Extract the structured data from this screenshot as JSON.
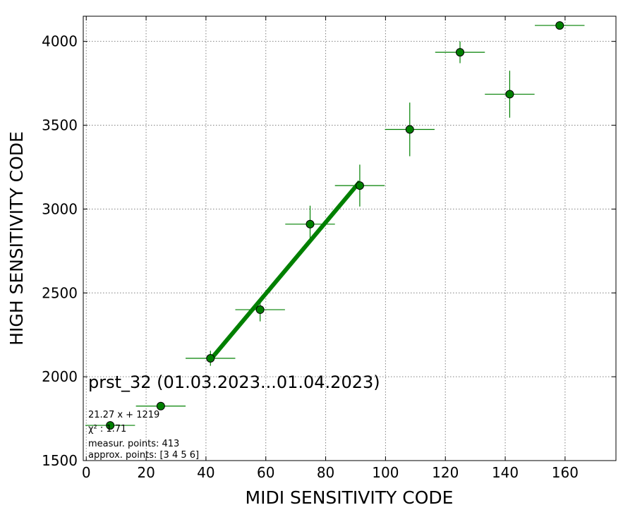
{
  "chart_data": {
    "type": "scatter",
    "xlabel": "MIDI SENSITIVITY CODE",
    "ylabel": "HIGH SENSITIVITY CODE",
    "xlim": [
      -1,
      177
    ],
    "ylim": [
      1500,
      4150
    ],
    "x_ticks": [
      0,
      20,
      40,
      60,
      80,
      100,
      120,
      140,
      160
    ],
    "y_ticks": [
      1500,
      2000,
      2500,
      3000,
      3500,
      4000
    ],
    "grid": true,
    "colors": {
      "series": "#008000",
      "marker_edge": "#000000",
      "grid": "#808080"
    },
    "points": [
      {
        "x": 8.0,
        "y": 1710,
        "xerr": 8.3,
        "yerr": 0
      },
      {
        "x": 24.9,
        "y": 1825,
        "xerr": 8.3,
        "yerr": 0
      },
      {
        "x": 41.5,
        "y": 2110,
        "xerr": 8.3,
        "yerr": 45
      },
      {
        "x": 58.1,
        "y": 2400,
        "xerr": 8.3,
        "yerr": 70
      },
      {
        "x": 74.8,
        "y": 2910,
        "xerr": 8.3,
        "yerr": 110
      },
      {
        "x": 91.4,
        "y": 3140,
        "xerr": 8.3,
        "yerr": 125
      },
      {
        "x": 108.1,
        "y": 3475,
        "xerr": 8.3,
        "yerr": 160
      },
      {
        "x": 124.9,
        "y": 3935,
        "xerr": 8.3,
        "yerr": 65
      },
      {
        "x": 141.5,
        "y": 3685,
        "xerr": 8.3,
        "yerr": 140
      },
      {
        "x": 158.2,
        "y": 4095,
        "xerr": 8.3,
        "yerr": 0
      }
    ],
    "fit_line": {
      "slope": 21.27,
      "intercept": 1219,
      "x_range": [
        41.5,
        91.4
      ]
    },
    "annotations": {
      "title": "prst_32 (01.03.2023...01.04.2023)",
      "equation": "21.27 x + 1219",
      "chi2": "χ² : 1.71",
      "measur_points": "measur. points: 413",
      "approx_points": "approx. points: [3 4 5 6]"
    }
  }
}
